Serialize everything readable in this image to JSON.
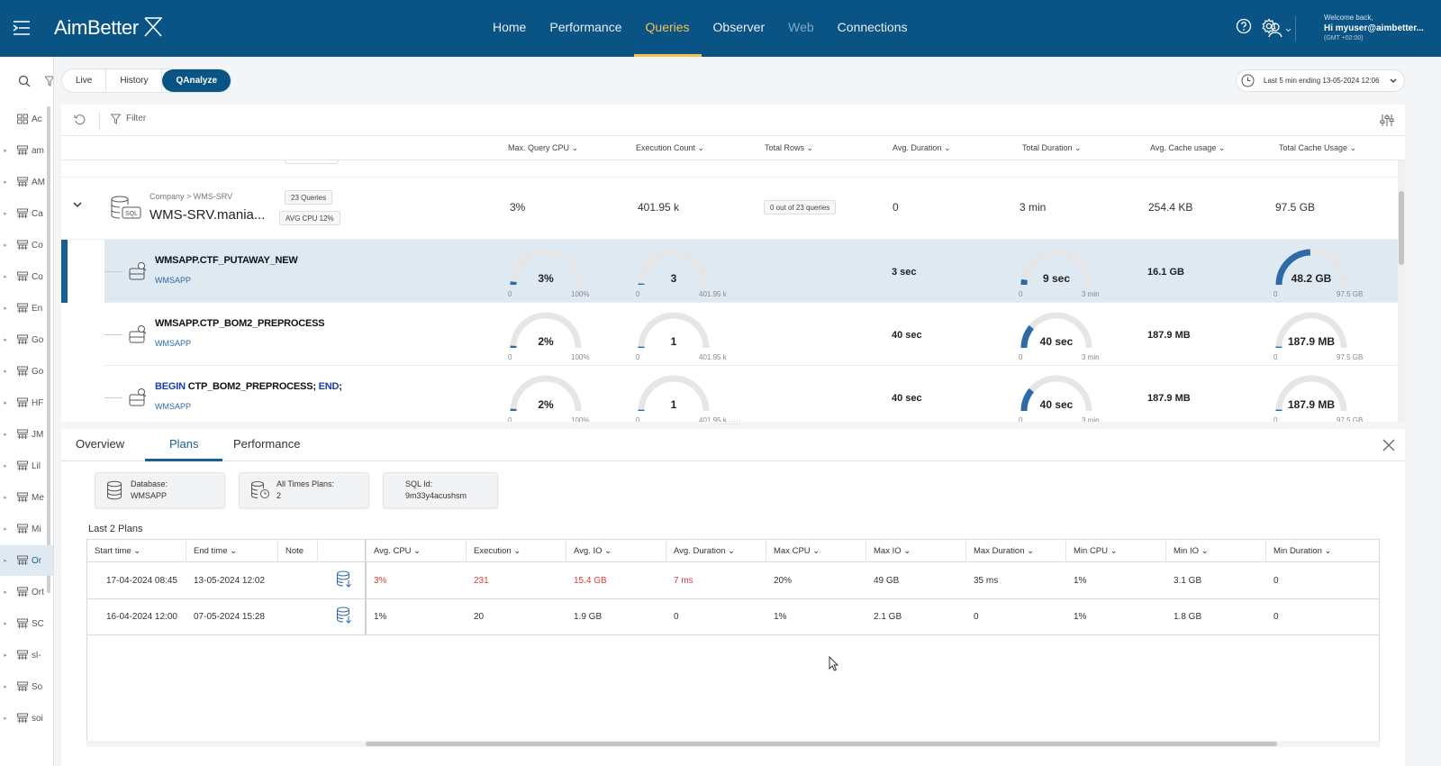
{
  "header": {
    "logo": "AimBetter",
    "nav": [
      {
        "label": "Home",
        "state": "normal"
      },
      {
        "label": "Performance",
        "state": "normal"
      },
      {
        "label": "Queries",
        "state": "active"
      },
      {
        "label": "Observer",
        "state": "normal"
      },
      {
        "label": "Web",
        "state": "dim"
      },
      {
        "label": "Connections",
        "state": "normal"
      }
    ],
    "welcome": "Welcome back,",
    "username": "Hi myuser@aimbetter...",
    "timezone": "(GMT +02:00)"
  },
  "sidebar": {
    "items": [
      {
        "label": "Ac",
        "caret": false
      },
      {
        "label": "am",
        "caret": true
      },
      {
        "label": "AM",
        "caret": true
      },
      {
        "label": "Ca",
        "caret": true
      },
      {
        "label": "Co",
        "caret": true
      },
      {
        "label": "Co",
        "caret": true
      },
      {
        "label": "En",
        "caret": true
      },
      {
        "label": "Go",
        "caret": true
      },
      {
        "label": "Go",
        "caret": true
      },
      {
        "label": "HF",
        "caret": true
      },
      {
        "label": "JM",
        "caret": true
      },
      {
        "label": "Lil",
        "caret": true
      },
      {
        "label": "Me",
        "caret": true
      },
      {
        "label": "Mi",
        "caret": true
      },
      {
        "label": "Or",
        "caret": true,
        "selected": true
      },
      {
        "label": "Ort",
        "caret": true
      },
      {
        "label": "SC",
        "caret": true
      },
      {
        "label": "sl-",
        "caret": true
      },
      {
        "label": "So",
        "caret": true
      },
      {
        "label": "soi",
        "caret": true
      }
    ]
  },
  "mode_tabs": [
    "Live",
    "History",
    "QAnalyze"
  ],
  "time_range": "Last 5 min ending  13-05-2024 12:06",
  "filter": {
    "label": "Filter"
  },
  "columns": [
    "Max. Query CPU",
    "Execution Count",
    "Total Rows",
    "Avg. Duration",
    "Total Duration",
    "Avg. Cache usage",
    "Total Cache Usage"
  ],
  "group": {
    "path": "Company > WMS-SRV",
    "name": "WMS-SRV.mania...",
    "queries_pill": "23 Queries",
    "avg_cpu_pill": "AVG CPU 12%",
    "max_cpu": "3%",
    "exec_count": "401.95 k",
    "total_rows_pill": "0 out of 23 queries",
    "avg_duration": "0",
    "total_duration": "3 min",
    "avg_cache": "254.4 KB",
    "total_cache": "97.5 GB"
  },
  "queries": [
    {
      "name": "WMSAPP.CTF_PUTAWAY_NEW",
      "name_parts": [
        {
          "t": "WMSAPP.CTF_PUTAWAY_NEW",
          "kw": false
        }
      ],
      "db": "WMSAPP",
      "selected": true,
      "cpu": {
        "value": "3%",
        "fraction": 0.03,
        "min": "0",
        "max": "100%"
      },
      "exec": {
        "value": "3",
        "fraction": 0.01,
        "min": "0",
        "max": "401.95 k"
      },
      "avg_duration": "3 sec",
      "total_duration": {
        "value": "9 sec",
        "fraction": 0.05,
        "min": "0",
        "max": "3 min"
      },
      "avg_cache": "16.1 GB",
      "total_cache": {
        "value": "48.2 GB",
        "fraction": 0.49,
        "min": "0",
        "max": "97.5 GB"
      }
    },
    {
      "name": "WMSAPP.CTP_BOM2_PREPROCESS",
      "name_parts": [
        {
          "t": "WMSAPP.CTP_BOM2_PREPROCESS",
          "kw": false
        }
      ],
      "db": "WMSAPP",
      "selected": false,
      "cpu": {
        "value": "2%",
        "fraction": 0.02,
        "min": "0",
        "max": "100%"
      },
      "exec": {
        "value": "1",
        "fraction": 0.004,
        "min": "0",
        "max": "401.95 k"
      },
      "avg_duration": "40 sec",
      "total_duration": {
        "value": "40 sec",
        "fraction": 0.22,
        "min": "0",
        "max": "3 min"
      },
      "avg_cache": "187.9 MB",
      "total_cache": {
        "value": "187.9 MB",
        "fraction": 0.002,
        "min": "0",
        "max": "97.5 GB"
      }
    },
    {
      "name": "BEGIN CTP_BOM2_PREPROCESS; END;",
      "name_parts": [
        {
          "t": "BEGIN",
          "kw": true
        },
        {
          "t": " CTP_BOM2_PREPROCESS; ",
          "kw": false
        },
        {
          "t": "END",
          "kw": true
        },
        {
          "t": ";",
          "kw": false
        }
      ],
      "db": "WMSAPP",
      "selected": false,
      "cpu": {
        "value": "2%",
        "fraction": 0.02,
        "min": "0",
        "max": "100%"
      },
      "exec": {
        "value": "1",
        "fraction": 0.004,
        "min": "0",
        "max": "401.95 k"
      },
      "avg_duration": "40 sec",
      "total_duration": {
        "value": "40 sec",
        "fraction": 0.22,
        "min": "0",
        "max": "3 min"
      },
      "avg_cache": "187.9 MB",
      "total_cache": {
        "value": "187.9 MB",
        "fraction": 0.002,
        "min": "0",
        "max": "97.5 GB"
      }
    }
  ],
  "detail": {
    "tabs": [
      "Overview",
      "Plans",
      "Performance"
    ],
    "active_tab": "Plans",
    "cards": {
      "database_label": "Database:",
      "database_value": "WMSAPP",
      "plans_label": "All Times Plans:",
      "plans_value": "2",
      "sqlid_label": "SQL Id:",
      "sqlid_value": "9m33y4acushsm"
    },
    "plans_title": "Last 2 Plans",
    "table": {
      "headers": [
        "Start time",
        "End time",
        "Note",
        "",
        "Avg. CPU",
        "Execution",
        "Avg. IO",
        "Avg. Duration",
        "Max CPU",
        "Max IO",
        "Max Duration",
        "Min CPU",
        "Min IO",
        "Min Duration"
      ],
      "rows": [
        {
          "start": "17-04-2024 08:45",
          "end": "13-05-2024 12:02",
          "avg_cpu": "3%",
          "execution": "231",
          "avg_io": "15.4 GB",
          "avg_duration": "7 ms",
          "max_cpu": "20%",
          "max_io": "49 GB",
          "max_duration": "35 ms",
          "min_cpu": "1%",
          "min_io": "3.1 GB",
          "min_duration": "0",
          "highlight": true
        },
        {
          "start": "16-04-2024 12:00",
          "end": "07-05-2024 15:28",
          "avg_cpu": "1%",
          "execution": "20",
          "avg_io": "1.9 GB",
          "avg_duration": "0",
          "max_cpu": "1%",
          "max_io": "2.1 GB",
          "max_duration": "0",
          "min_cpu": "1%",
          "min_io": "1.8 GB",
          "min_duration": "0",
          "highlight": false
        }
      ]
    }
  },
  "colors": {
    "brand": "#0a5485",
    "accent": "#f4c14d",
    "gauge": "#2e6aa8",
    "alert": "#e03b3b"
  }
}
